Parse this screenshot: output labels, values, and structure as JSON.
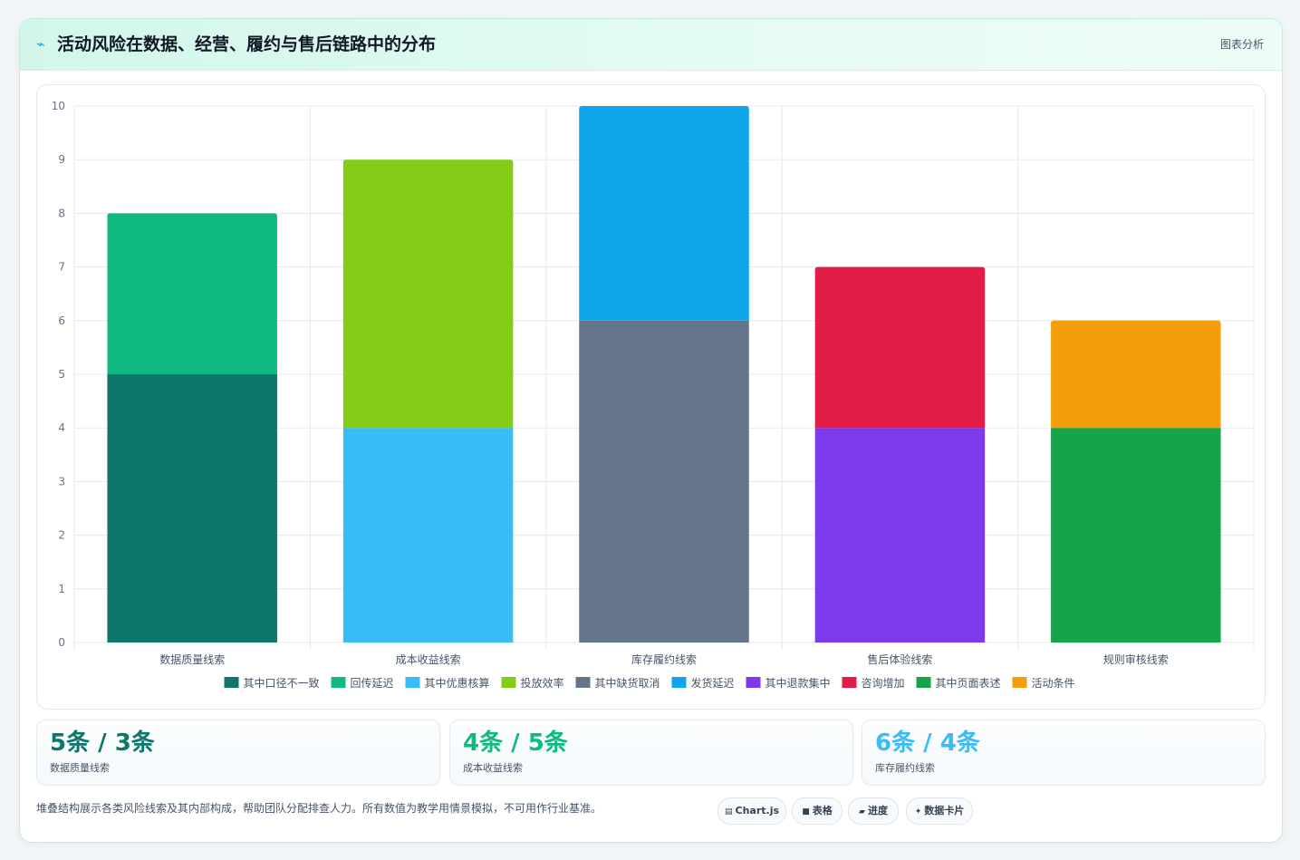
{
  "header": {
    "icon": "trend-line-icon",
    "title": "活动风险在数据、经营、履约与售后链路中的分布",
    "tag": "图表分析"
  },
  "chart_data": {
    "type": "bar",
    "stacked": true,
    "title": "",
    "xlabel": "",
    "ylabel": "",
    "ylim": [
      0,
      10
    ],
    "yticks": [
      0,
      1,
      2,
      3,
      4,
      5,
      6,
      7,
      8,
      9,
      10
    ],
    "grid": true,
    "legend_position": "bottom",
    "categories": [
      "数据质量线索",
      "成本收益线索",
      "库存履约线索",
      "售后体验线索",
      "规则审核线索"
    ],
    "series": [
      {
        "name": "其中口径不一致",
        "color": "#0f766e",
        "values": [
          5,
          0,
          0,
          0,
          0
        ]
      },
      {
        "name": "回传延迟",
        "color": "#10b981",
        "values": [
          3,
          0,
          0,
          0,
          0
        ]
      },
      {
        "name": "其中优惠核算",
        "color": "#38bdf8",
        "values": [
          0,
          4,
          0,
          0,
          0
        ]
      },
      {
        "name": "投放效率",
        "color": "#84cc16",
        "values": [
          0,
          5,
          0,
          0,
          0
        ]
      },
      {
        "name": "其中缺货取消",
        "color": "#64748b",
        "values": [
          0,
          0,
          6,
          0,
          0
        ]
      },
      {
        "name": "发货延迟",
        "color": "#0ea5e9",
        "values": [
          0,
          0,
          4,
          0,
          0
        ]
      },
      {
        "name": "其中退款集中",
        "color": "#7c3aed",
        "values": [
          0,
          0,
          0,
          4,
          0
        ]
      },
      {
        "name": "咨询增加",
        "color": "#e11d48",
        "values": [
          0,
          0,
          0,
          3,
          0
        ]
      },
      {
        "name": "其中页面表述",
        "color": "#16a34a",
        "values": [
          0,
          0,
          0,
          0,
          4
        ]
      },
      {
        "name": "活动条件",
        "color": "#f59e0b",
        "values": [
          0,
          0,
          0,
          0,
          2
        ]
      }
    ]
  },
  "stats": [
    {
      "value": "5条 / 3条",
      "label": "数据质量线索",
      "color": "#0f766e"
    },
    {
      "value": "4条 / 5条",
      "label": "成本收益线索",
      "color": "#10b981"
    },
    {
      "value": "6条 / 4条",
      "label": "库存履约线索",
      "color": "#38bdf8"
    }
  ],
  "footnote": "堆叠结构展示各类风险线索及其内部构成，帮助团队分配排查人力。所有数值为教学用情景模拟，不可用作行业基准。",
  "pills": [
    {
      "icon": "▤",
      "label": "Chart.js"
    },
    {
      "icon": "■",
      "label": "表格"
    },
    {
      "icon": "▰",
      "label": "进度"
    },
    {
      "icon": "✦",
      "label": "数据卡片"
    }
  ]
}
